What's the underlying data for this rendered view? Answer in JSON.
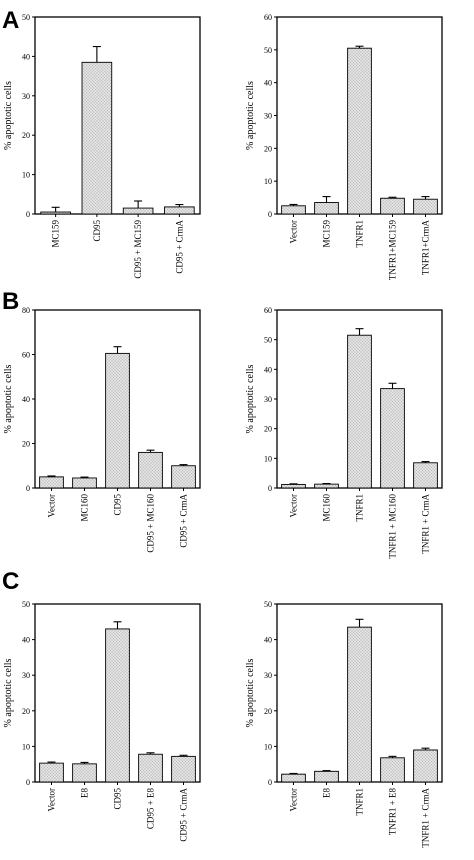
{
  "panels": [
    {
      "letter": "A"
    },
    {
      "letter": "B"
    },
    {
      "letter": "C"
    }
  ],
  "chart_data": [
    {
      "type": "bar",
      "panel": "A",
      "position": "left",
      "ylabel": "% apoptotic cells",
      "ylim": [
        0,
        50
      ],
      "yticks": [
        0,
        10,
        20,
        30,
        40,
        50
      ],
      "categories": [
        "MC159",
        "CD95",
        "CD95 + MC159",
        "CD95 + CrmA"
      ],
      "values": [
        0.5,
        38.5,
        1.5,
        1.8
      ],
      "errors": [
        1.2,
        4.0,
        1.8,
        0.6
      ]
    },
    {
      "type": "bar",
      "panel": "A",
      "position": "right",
      "ylabel": "% apoptotic cells",
      "ylim": [
        0,
        60
      ],
      "yticks": [
        0,
        10,
        20,
        30,
        40,
        50,
        60
      ],
      "categories": [
        "Vector",
        "MC159",
        "TNFR1",
        "TNFR1+MC159",
        "TNFR1+CrmA"
      ],
      "values": [
        2.5,
        3.5,
        50.5,
        4.8,
        4.5
      ],
      "errors": [
        0.4,
        1.8,
        0.6,
        0.3,
        0.8
      ]
    },
    {
      "type": "bar",
      "panel": "B",
      "position": "left",
      "ylabel": "% apoptotic cells",
      "ylim": [
        0,
        80
      ],
      "yticks": [
        0,
        20,
        40,
        60,
        80
      ],
      "categories": [
        "Vector",
        "MC160",
        "CD95",
        "CD95 + MC160",
        "CD95 + CrmA"
      ],
      "values": [
        5,
        4.5,
        60.5,
        16,
        10
      ],
      "errors": [
        0.4,
        0.4,
        3.0,
        1.0,
        0.5
      ]
    },
    {
      "type": "bar",
      "panel": "B",
      "position": "right",
      "ylabel": "% apoptotic cells",
      "ylim": [
        0,
        60
      ],
      "yticks": [
        0,
        10,
        20,
        30,
        40,
        50,
        60
      ],
      "categories": [
        "Vector",
        "MC160",
        "TNFR1",
        "TNFR1 + MC160",
        "TNFR1 + CrmA"
      ],
      "values": [
        1.2,
        1.3,
        51.5,
        33.5,
        8.5
      ],
      "errors": [
        0.2,
        0.2,
        2.2,
        1.8,
        0.4
      ]
    },
    {
      "type": "bar",
      "panel": "C",
      "position": "left",
      "ylabel": "% apoptotic cells",
      "ylim": [
        0,
        50
      ],
      "yticks": [
        0,
        10,
        20,
        30,
        40,
        50
      ],
      "categories": [
        "Vector",
        "E8",
        "CD95",
        "CD95 + E8",
        "CD95 + CrmA"
      ],
      "values": [
        5.3,
        5.1,
        43,
        7.8,
        7.2
      ],
      "errors": [
        0.3,
        0.4,
        2.0,
        0.4,
        0.3
      ]
    },
    {
      "type": "bar",
      "panel": "C",
      "position": "right",
      "ylabel": "% apoptotic cells",
      "ylim": [
        0,
        50
      ],
      "yticks": [
        0,
        10,
        20,
        30,
        40,
        50
      ],
      "categories": [
        "Vector",
        "E8",
        "TNFR1",
        "TNFR1 + E8",
        "TNFR1 + CrmA"
      ],
      "values": [
        2.2,
        3.0,
        43.5,
        6.8,
        9.0
      ],
      "errors": [
        0.2,
        0.2,
        2.2,
        0.4,
        0.5
      ]
    }
  ]
}
